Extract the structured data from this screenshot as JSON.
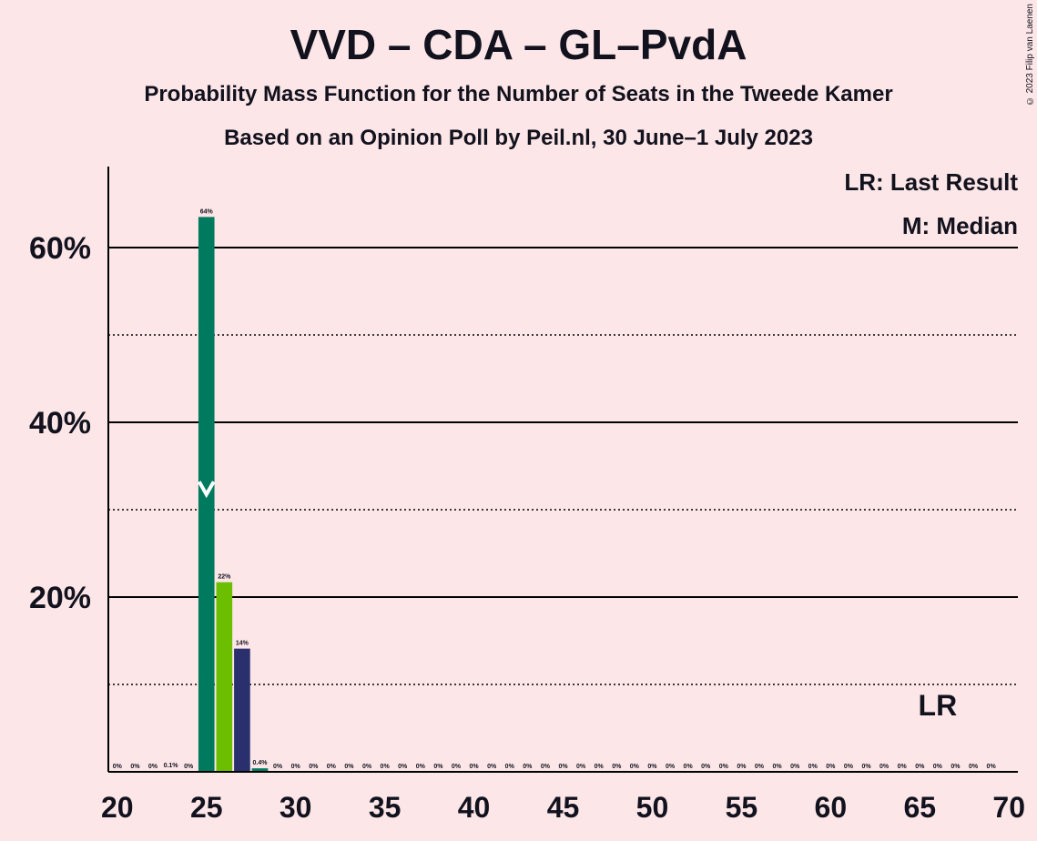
{
  "title": "VVD – CDA – GL–PvdA",
  "subtitle": "Probability Mass Function for the Number of Seats in the Tweede Kamer",
  "poll_info": "Based on an Opinion Poll by Peil.nl, 30 June–1 July 2023",
  "copyright": "© 2023 Filip van Laenen",
  "legend": {
    "last_result": "LR: Last Result",
    "median": "M: Median"
  },
  "lr_marker": "LR",
  "colors": {
    "background": "#FCE6E7",
    "vvd": "#007A5E",
    "cda": "#6CBE00",
    "glpvda": "#29306D",
    "text": "#12121E"
  },
  "chart_data": {
    "type": "bar",
    "x": [
      20,
      21,
      22,
      23,
      24,
      25,
      26,
      27,
      28,
      29,
      30,
      31,
      32,
      33,
      34,
      35,
      36,
      37,
      38,
      39,
      40,
      41,
      42,
      43,
      44,
      45,
      46,
      47,
      48,
      49,
      50,
      51,
      52,
      53,
      54,
      55,
      56,
      57,
      58,
      59,
      60,
      61,
      62,
      63,
      64,
      65,
      66,
      67,
      68,
      69,
      70
    ],
    "values": [
      0,
      0,
      0,
      0.1,
      0,
      63.5,
      21.7,
      14.1,
      0.4,
      0,
      0,
      0,
      0,
      0,
      0,
      0,
      0,
      0,
      0,
      0,
      0,
      0,
      0,
      0,
      0,
      0,
      0,
      0,
      0,
      0,
      0,
      0,
      0,
      0,
      0,
      0,
      0,
      0,
      0,
      0,
      0,
      0,
      0,
      0,
      0,
      0,
      0,
      0,
      0,
      0,
      0
    ],
    "value_labels": [
      "0%",
      "0%",
      "0%",
      "0.1%",
      "0%",
      "64%",
      "22%",
      "14%",
      "0.4%",
      "0%",
      "0%",
      "0%",
      "0%",
      "0%",
      "0%",
      "0%",
      "0%",
      "0%",
      "0%",
      "0%",
      "0%",
      "0%",
      "0%",
      "0%",
      "0%",
      "0%",
      "0%",
      "0%",
      "0%",
      "0%",
      "0%",
      "0%",
      "0%",
      "0%",
      "0%",
      "0%",
      "0%",
      "0%",
      "0%",
      "0%",
      "0%",
      "0%",
      "0%",
      "0%",
      "0%",
      "0%",
      "0%",
      "0%",
      "0%",
      "0%",
      ""
    ],
    "bar_colors": {
      "25": "#007A5E",
      "26": "#6CBE00",
      "27": "#29306D",
      "28": "#007A5E"
    },
    "median": 25,
    "last_result": 66,
    "xticks": [
      20,
      25,
      30,
      35,
      40,
      45,
      50,
      55,
      60,
      65,
      70
    ],
    "yticks_major": [
      20,
      40,
      60
    ],
    "ytick_labels": [
      "20%",
      "40%",
      "60%"
    ],
    "yticks_minor": [
      10,
      30,
      50
    ],
    "ylim": [
      0,
      69
    ],
    "xlim": [
      19.5,
      70.5
    ]
  }
}
